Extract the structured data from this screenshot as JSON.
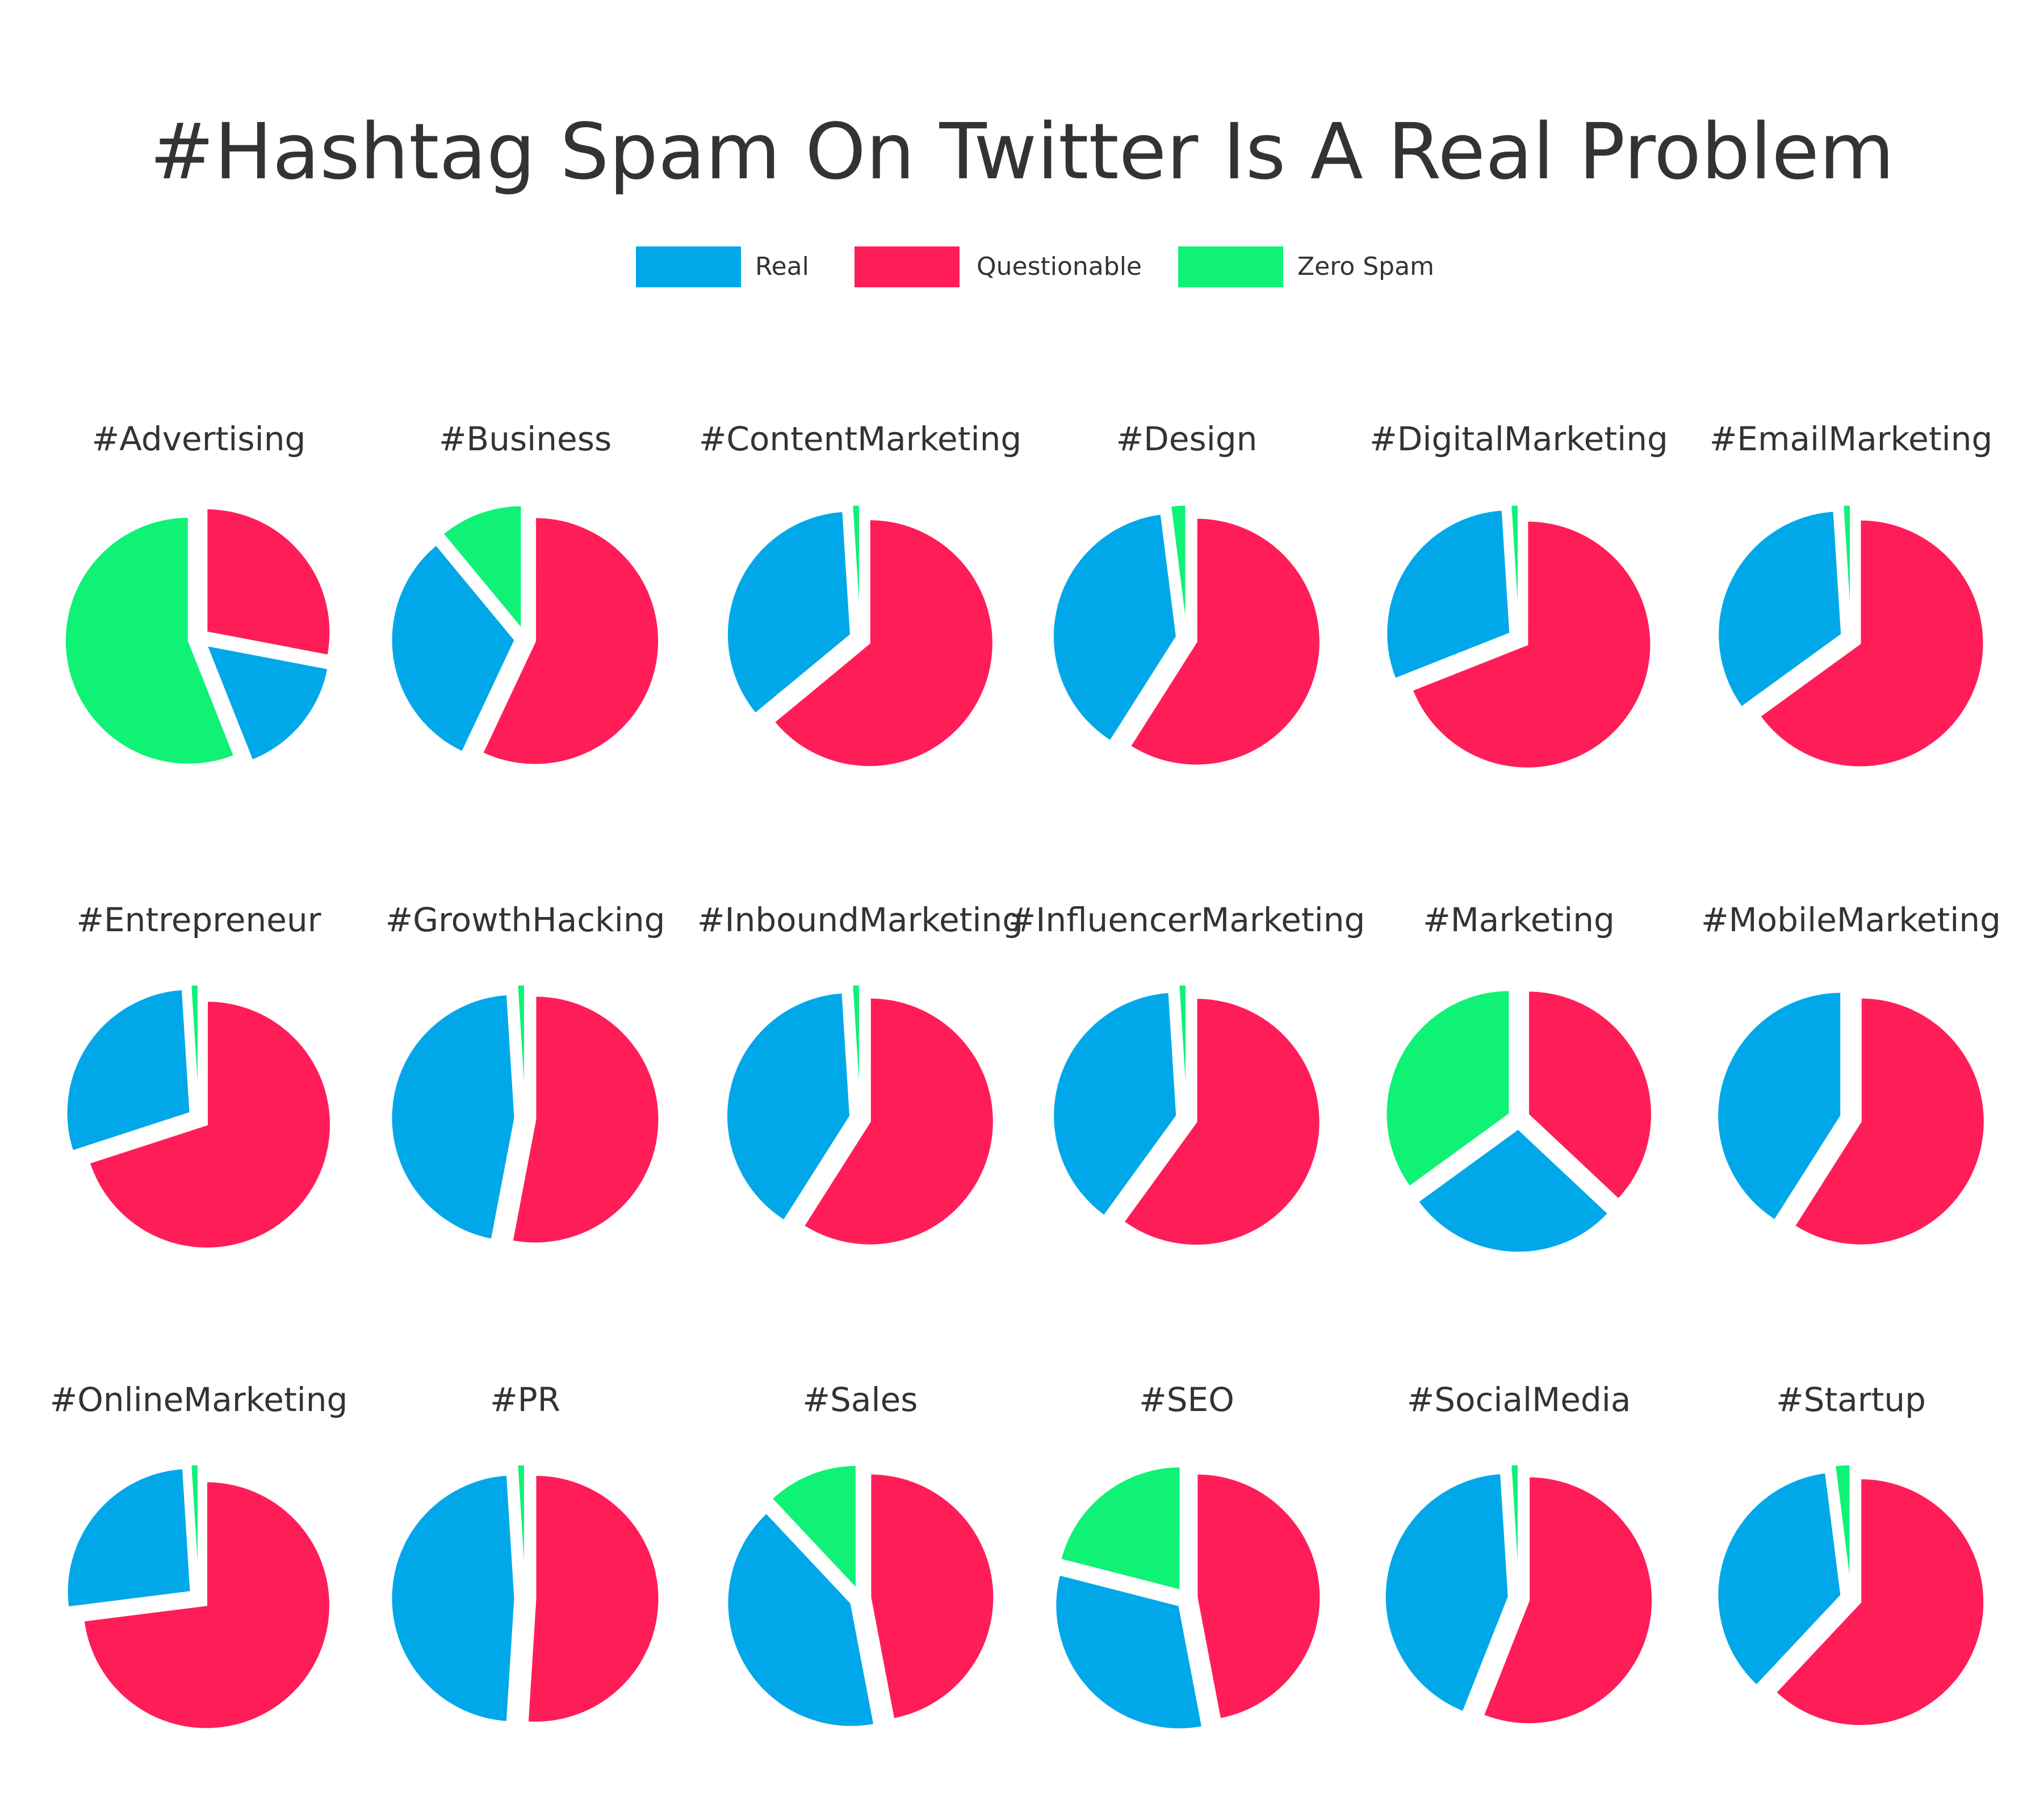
{
  "chart_data": {
    "type": "pie",
    "title": "#Hashtag Spam On Twitter Is A Real Problem",
    "legend_position": "top-center",
    "legend": [
      {
        "name": "Real",
        "color": "#00A8EA"
      },
      {
        "name": "Questionable",
        "color": "#FF1D58"
      },
      {
        "name": "Zero Spam",
        "color": "#0FF276"
      }
    ],
    "pies": [
      {
        "label": "#Advertising",
        "values": {
          "Real": 16,
          "Questionable": 28,
          "Zero Spam": 56
        }
      },
      {
        "label": "#Business",
        "values": {
          "Real": 32,
          "Questionable": 57,
          "Zero Spam": 11
        }
      },
      {
        "label": "#ContentMarketing",
        "values": {
          "Real": 35,
          "Questionable": 64,
          "Zero Spam": 1
        }
      },
      {
        "label": "#Design",
        "values": {
          "Real": 39,
          "Questionable": 59,
          "Zero Spam": 2
        }
      },
      {
        "label": "#DigitalMarketing",
        "values": {
          "Real": 30,
          "Questionable": 69,
          "Zero Spam": 1
        }
      },
      {
        "label": "#EmailMarketing",
        "values": {
          "Real": 34,
          "Questionable": 65,
          "Zero Spam": 1
        }
      },
      {
        "label": "#Entrepreneur",
        "values": {
          "Real": 29,
          "Questionable": 70,
          "Zero Spam": 1
        }
      },
      {
        "label": "#GrowthHacking",
        "values": {
          "Real": 46,
          "Questionable": 53,
          "Zero Spam": 1
        }
      },
      {
        "label": "#InboundMarketing",
        "values": {
          "Real": 40,
          "Questionable": 59,
          "Zero Spam": 1
        }
      },
      {
        "label": "#InfluencerMarketing",
        "values": {
          "Real": 39,
          "Questionable": 60,
          "Zero Spam": 1
        }
      },
      {
        "label": "#Marketing",
        "values": {
          "Real": 28,
          "Questionable": 37,
          "Zero Spam": 35
        }
      },
      {
        "label": "#MobileMarketing",
        "values": {
          "Real": 41,
          "Questionable": 59,
          "Zero Spam": 0
        }
      },
      {
        "label": "#OnlineMarketing",
        "values": {
          "Real": 26,
          "Questionable": 73,
          "Zero Spam": 1
        }
      },
      {
        "label": "#PR",
        "values": {
          "Real": 48,
          "Questionable": 51,
          "Zero Spam": 1
        }
      },
      {
        "label": "#Sales",
        "values": {
          "Real": 41,
          "Questionable": 47,
          "Zero Spam": 12
        }
      },
      {
        "label": "#SEO",
        "values": {
          "Real": 32,
          "Questionable": 47,
          "Zero Spam": 21
        }
      },
      {
        "label": "#SocialMedia",
        "values": {
          "Real": 43,
          "Questionable": 56,
          "Zero Spam": 1
        }
      },
      {
        "label": "#Startup",
        "values": {
          "Real": 36,
          "Questionable": 62,
          "Zero Spam": 2
        }
      }
    ]
  }
}
